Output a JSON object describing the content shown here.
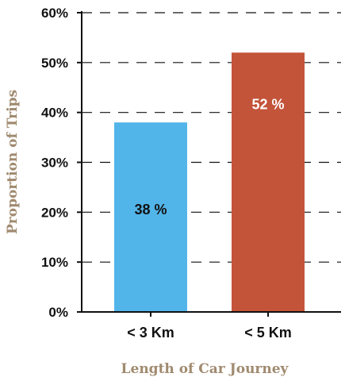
{
  "chart_data": {
    "type": "bar",
    "categories": [
      "< 3 Km",
      "< 5 Km"
    ],
    "values": [
      38,
      52
    ],
    "data_labels": [
      "38 %",
      "52 %"
    ],
    "title": "",
    "xlabel": "Length of Car Journey",
    "ylabel": "Proportion of Trips",
    "ylim": [
      0,
      60
    ],
    "yticks": [
      0,
      10,
      20,
      30,
      40,
      50,
      60
    ],
    "ytick_labels": [
      "0%",
      "10%",
      "20%",
      "30%",
      "40%",
      "50%",
      "60%"
    ],
    "grid": "horizontal-dashed",
    "legend": "none",
    "colors": {
      "bars": [
        "#52b5e9",
        "#c3543a"
      ],
      "data_label_colors": [
        "#111111",
        "#ffffff"
      ],
      "axis_title": "#a08a6f",
      "axis": "#111111",
      "grid": "#111111"
    }
  }
}
